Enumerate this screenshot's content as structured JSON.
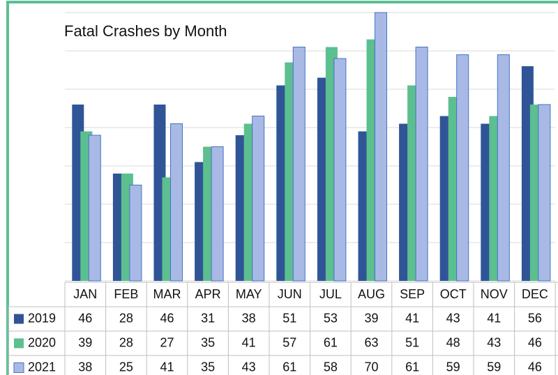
{
  "chart_data": {
    "type": "bar",
    "title": "Fatal Crashes by Month",
    "categories": [
      "JAN",
      "FEB",
      "MAR",
      "APR",
      "MAY",
      "JUN",
      "JUL",
      "AUG",
      "SEP",
      "OCT",
      "NOV",
      "DEC"
    ],
    "series": [
      {
        "name": "2019",
        "color": "#2f5597",
        "values": [
          46,
          28,
          46,
          31,
          38,
          51,
          53,
          39,
          41,
          43,
          41,
          56
        ]
      },
      {
        "name": "2020",
        "color": "#5cbf8f",
        "values": [
          39,
          28,
          27,
          35,
          41,
          57,
          61,
          63,
          51,
          48,
          43,
          46
        ]
      },
      {
        "name": "2021",
        "color": "#a9b9e6",
        "values": [
          38,
          25,
          41,
          35,
          43,
          61,
          58,
          70,
          61,
          59,
          59,
          46
        ]
      }
    ],
    "ylim": [
      0,
      70
    ],
    "yticks": [
      0,
      10,
      20,
      30,
      40,
      50,
      60,
      70
    ],
    "grid": true
  }
}
